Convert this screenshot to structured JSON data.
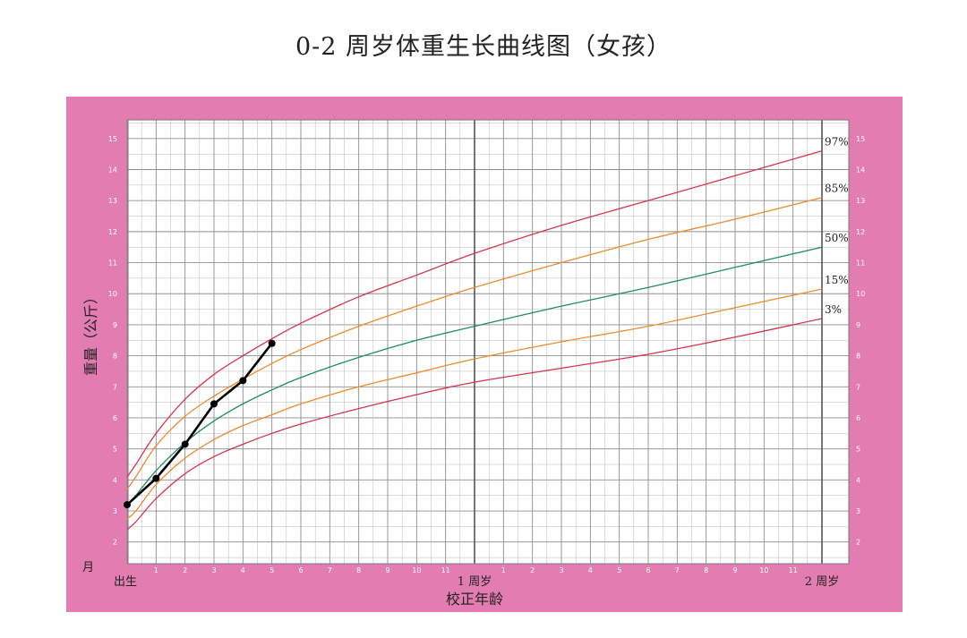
{
  "page": {
    "title": "0-2 周岁体重生长曲线图（女孩）"
  },
  "colors": {
    "frame": "#e27cb1",
    "grid_minor": "#b7b7b7",
    "grid_major": "#8c8c8c",
    "grid_year": "#555555"
  },
  "chart_data": {
    "type": "line",
    "title": "0-2 周岁体重生长曲线图（女孩）",
    "ylabel": "重量（公斤）",
    "xlabel": "校正年龄",
    "x_unit_label": "月",
    "xlim": [
      0,
      24
    ],
    "ylim": [
      1.3,
      15.6
    ],
    "y_ticks": [
      2,
      3,
      4,
      5,
      6,
      7,
      8,
      9,
      10,
      11,
      12,
      13,
      14,
      15
    ],
    "x_labels": [
      {
        "x": 0,
        "label": "出生",
        "kind": "big"
      },
      {
        "x": 1,
        "label": "1"
      },
      {
        "x": 2,
        "label": "2"
      },
      {
        "x": 3,
        "label": "3"
      },
      {
        "x": 4,
        "label": "4"
      },
      {
        "x": 5,
        "label": "5"
      },
      {
        "x": 6,
        "label": "6"
      },
      {
        "x": 7,
        "label": "7"
      },
      {
        "x": 8,
        "label": "8"
      },
      {
        "x": 9,
        "label": "9"
      },
      {
        "x": 10,
        "label": "10"
      },
      {
        "x": 11,
        "label": "11"
      },
      {
        "x": 12,
        "label": "1 周岁",
        "kind": "big"
      },
      {
        "x": 13,
        "label": "1"
      },
      {
        "x": 14,
        "label": "2"
      },
      {
        "x": 15,
        "label": "3"
      },
      {
        "x": 16,
        "label": "4"
      },
      {
        "x": 17,
        "label": "5"
      },
      {
        "x": 18,
        "label": "6"
      },
      {
        "x": 19,
        "label": "7"
      },
      {
        "x": 20,
        "label": "8"
      },
      {
        "x": 21,
        "label": "9"
      },
      {
        "x": 22,
        "label": "10"
      },
      {
        "x": 23,
        "label": "11"
      },
      {
        "x": 24,
        "label": "2 周岁",
        "kind": "big"
      }
    ],
    "grid": true,
    "series": [
      {
        "name": "97%",
        "color": "#d4364f",
        "x": [
          0,
          0.3,
          1,
          2,
          3,
          4,
          5,
          6,
          8,
          10,
          12,
          15,
          18,
          21,
          24
        ],
        "y": [
          4.1,
          4.5,
          5.5,
          6.6,
          7.4,
          8.0,
          8.55,
          9.05,
          9.9,
          10.6,
          11.3,
          12.2,
          13.0,
          13.8,
          14.6
        ]
      },
      {
        "name": "85%",
        "color": "#ee8a2f",
        "x": [
          0,
          0.3,
          1,
          2,
          3,
          4,
          5,
          6,
          8,
          10,
          12,
          15,
          18,
          21,
          24
        ],
        "y": [
          3.7,
          4.1,
          5.1,
          6.05,
          6.7,
          7.25,
          7.75,
          8.2,
          8.95,
          9.6,
          10.2,
          11.0,
          11.75,
          12.4,
          13.1
        ]
      },
      {
        "name": "50%",
        "color": "#1f8f5a",
        "x": [
          0,
          0.3,
          1,
          2,
          3,
          4,
          5,
          6,
          8,
          10,
          12,
          15,
          18,
          21,
          24
        ],
        "y": [
          3.2,
          3.5,
          4.3,
          5.2,
          5.9,
          6.45,
          6.9,
          7.3,
          7.95,
          8.5,
          8.95,
          9.6,
          10.2,
          10.85,
          11.5
        ]
      },
      {
        "name": "15%",
        "color": "#ee8a2f",
        "x": [
          0,
          0.3,
          1,
          2,
          3,
          4,
          5,
          6,
          8,
          10,
          12,
          15,
          18,
          21,
          24
        ],
        "y": [
          2.75,
          3.0,
          3.85,
          4.7,
          5.3,
          5.75,
          6.1,
          6.45,
          7.0,
          7.45,
          7.9,
          8.45,
          8.95,
          9.55,
          10.15
        ]
      },
      {
        "name": "3%",
        "color": "#d4364f",
        "x": [
          0,
          0.3,
          1,
          2,
          3,
          4,
          5,
          6,
          8,
          10,
          12,
          15,
          18,
          21,
          24
        ],
        "y": [
          2.4,
          2.65,
          3.4,
          4.2,
          4.75,
          5.15,
          5.5,
          5.8,
          6.3,
          6.75,
          7.15,
          7.6,
          8.05,
          8.6,
          9.2
        ]
      },
      {
        "name": "",
        "color": "#000000",
        "markers": true,
        "x": [
          0,
          1,
          2,
          3,
          4,
          5
        ],
        "y": [
          3.2,
          4.05,
          5.15,
          6.45,
          7.2,
          8.4
        ]
      }
    ],
    "series_labels": [
      "97%",
      "85%",
      "50%",
      "15%",
      "3%"
    ]
  }
}
